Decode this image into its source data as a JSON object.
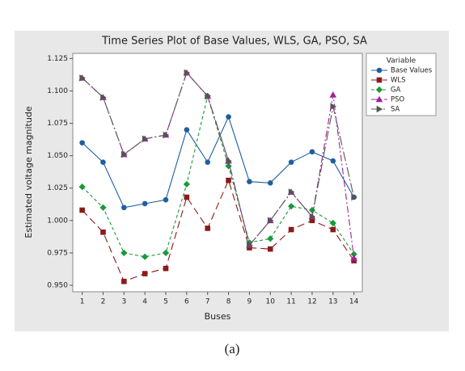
{
  "chart_data": {
    "type": "line",
    "title": "Time Series Plot of Base Values, WLS, GA, PSO, SA",
    "x_label": "Buses",
    "y_label": "Estimated voltage magnitude",
    "caption": "(a)",
    "x": [
      1,
      2,
      3,
      4,
      5,
      6,
      7,
      8,
      9,
      10,
      11,
      12,
      13,
      14
    ],
    "xlim": [
      0.55,
      14.4
    ],
    "xticks": [
      1,
      2,
      3,
      4,
      5,
      6,
      7,
      8,
      9,
      10,
      11,
      12,
      13,
      14
    ],
    "ylim": [
      0.945,
      1.129
    ],
    "yticks": [
      {
        "value": 0.95,
        "label": "0.950"
      },
      0.975,
      {
        "value": 1.0,
        "label": "1.000"
      },
      1.025,
      {
        "value": 1.05,
        "label": "1.050"
      },
      1.075,
      {
        "value": 1.1,
        "label": "1.100"
      },
      1.125
    ],
    "legend_title": "Variable",
    "legend_position": "right",
    "series": [
      {
        "name": "Base Values",
        "color": "#1f5f9f",
        "marker": "circle",
        "dash": "solid",
        "values": [
          1.06,
          1.045,
          1.01,
          1.013,
          1.016,
          1.07,
          1.045,
          1.08,
          1.03,
          1.029,
          1.045,
          1.053,
          1.046,
          1.018
        ]
      },
      {
        "name": "WLS",
        "color": "#8b1a1a",
        "marker": "square",
        "dash": "9 5",
        "values": [
          1.008,
          0.991,
          0.953,
          0.959,
          0.963,
          1.018,
          0.994,
          1.031,
          0.979,
          0.978,
          0.993,
          1.0,
          0.993,
          0.969
        ]
      },
      {
        "name": "GA",
        "color": "#1a9a3a",
        "marker": "diamond",
        "dash": "4 3",
        "values": [
          1.026,
          1.01,
          0.975,
          0.972,
          0.975,
          1.028,
          1.096,
          1.042,
          0.983,
          0.986,
          1.011,
          1.008,
          0.998,
          0.974
        ]
      },
      {
        "name": "PSO",
        "color": "#a020a0",
        "marker": "triangle",
        "dash": "8 3 2 3",
        "values": [
          1.11,
          1.095,
          1.051,
          1.063,
          1.066,
          1.114,
          1.096,
          1.046,
          0.981,
          1.0,
          1.022,
          1.003,
          1.097,
          0.971
        ]
      },
      {
        "name": "SA",
        "color": "#555555",
        "marker": "triangle-right",
        "dash": "12 3 2 3",
        "values": [
          1.11,
          1.095,
          1.051,
          1.063,
          1.066,
          1.114,
          1.096,
          1.046,
          0.981,
          1.0,
          1.022,
          1.003,
          1.088,
          1.018
        ]
      }
    ]
  }
}
